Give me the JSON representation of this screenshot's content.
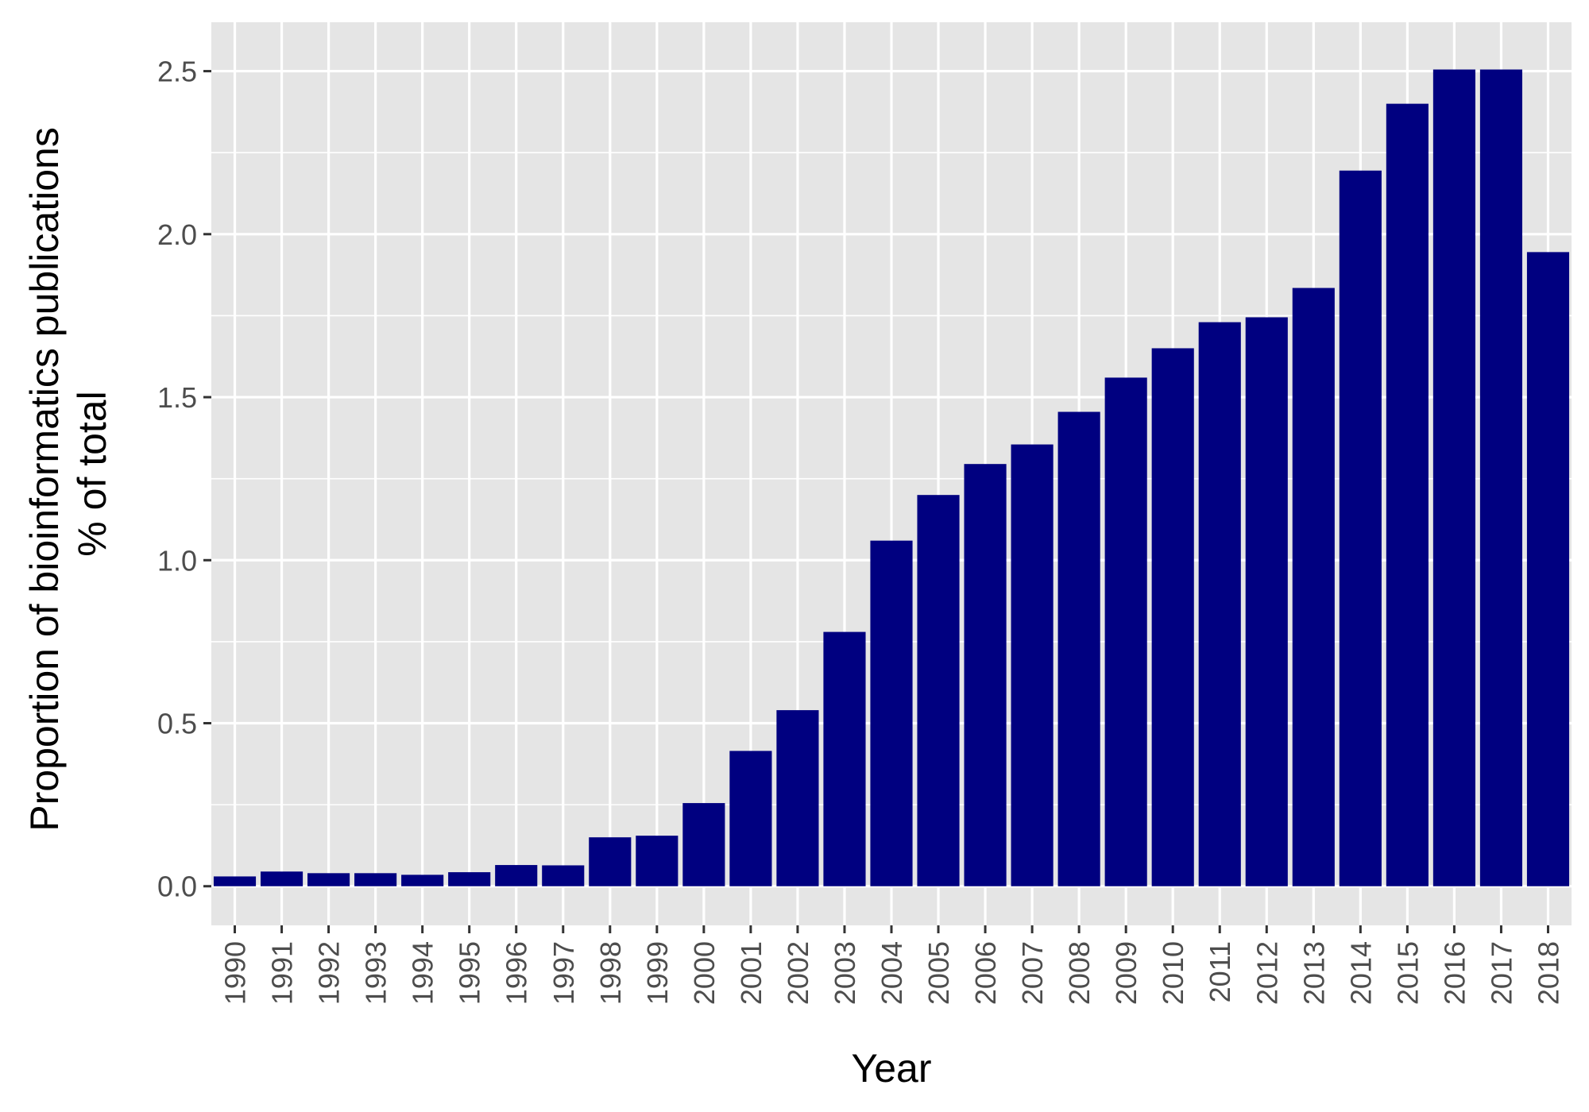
{
  "chart_data": {
    "type": "bar",
    "xlabel": "Year",
    "ylabel_lines": [
      "Proportion of bioinformatics publications",
      "% of total"
    ],
    "ylim": [
      -0.12,
      2.65
    ],
    "yticks": [
      0.0,
      0.5,
      1.0,
      1.5,
      2.0,
      2.5
    ],
    "ytick_labels": [
      "0.0",
      "0.5",
      "1.0",
      "1.5",
      "2.0",
      "2.5"
    ],
    "grid": true,
    "bar_color": "#000080",
    "panel_color": "#e5e5e5",
    "grid_color": "#ffffff",
    "categories": [
      "1990",
      "1991",
      "1992",
      "1993",
      "1994",
      "1995",
      "1996",
      "1997",
      "1998",
      "1999",
      "2000",
      "2001",
      "2002",
      "2003",
      "2004",
      "2005",
      "2006",
      "2007",
      "2008",
      "2009",
      "2010",
      "2011",
      "2012",
      "2013",
      "2014",
      "2015",
      "2016",
      "2017",
      "2018"
    ],
    "values": [
      0.03,
      0.045,
      0.04,
      0.04,
      0.035,
      0.043,
      0.065,
      0.064,
      0.15,
      0.155,
      0.255,
      0.415,
      0.54,
      0.78,
      1.06,
      1.2,
      1.295,
      1.355,
      1.455,
      1.56,
      1.65,
      1.73,
      1.745,
      1.835,
      2.195,
      2.4,
      2.505,
      2.505,
      1.945
    ]
  }
}
